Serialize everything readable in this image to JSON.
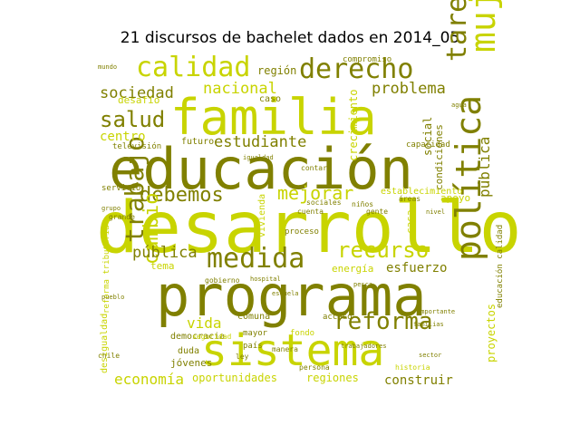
{
  "title": "21 discursos de bachelet dados en 2014_05",
  "colors": {
    "dark": "#808000",
    "mid": "#a6a600",
    "light": "#c8d400",
    "pale": "#d6d680"
  },
  "words": [
    {
      "text": "desarrollo",
      "tone": "light"
    },
    {
      "text": "educación",
      "tone": "dark"
    },
    {
      "text": "programa",
      "tone": "dark"
    },
    {
      "text": "sistema",
      "tone": "light"
    },
    {
      "text": "familia",
      "tone": "light"
    },
    {
      "text": "derecho",
      "tone": "dark"
    },
    {
      "text": "calidad",
      "tone": "light"
    },
    {
      "text": "mujeres",
      "tone": "light"
    },
    {
      "text": "tarea",
      "tone": "dark"
    },
    {
      "text": "política",
      "tone": "dark"
    },
    {
      "text": "trabajo",
      "tone": "dark"
    },
    {
      "text": "medida",
      "tone": "dark"
    },
    {
      "text": "reforma",
      "tone": "dark"
    },
    {
      "text": "recurso",
      "tone": "light"
    },
    {
      "text": "salud",
      "tone": "dark"
    },
    {
      "text": "debemos",
      "tone": "dark"
    },
    {
      "text": "cambio",
      "tone": "light"
    },
    {
      "text": "sociedad",
      "tone": "dark"
    },
    {
      "text": "nacional",
      "tone": "light"
    },
    {
      "text": "problema",
      "tone": "dark"
    },
    {
      "text": "estudiante",
      "tone": "dark"
    },
    {
      "text": "mejorar",
      "tone": "light"
    },
    {
      "text": "pública",
      "tone": "dark"
    },
    {
      "text": "pública",
      "tone": "dark"
    },
    {
      "text": "economía",
      "tone": "light"
    },
    {
      "text": "oportunidades",
      "tone": "light"
    },
    {
      "text": "regiones",
      "tone": "light"
    },
    {
      "text": "construir",
      "tone": "dark"
    },
    {
      "text": "vida",
      "tone": "light"
    },
    {
      "text": "esfuerzo",
      "tone": "dark"
    },
    {
      "text": "centro",
      "tone": "light"
    },
    {
      "text": "región",
      "tone": "dark"
    },
    {
      "text": "proyectos",
      "tone": "light"
    },
    {
      "text": "desafío",
      "tone": "light"
    },
    {
      "text": "tema",
      "tone": "light"
    },
    {
      "text": "energía",
      "tone": "light"
    },
    {
      "text": "social",
      "tone": "dark"
    },
    {
      "text": "crecimiento",
      "tone": "light"
    },
    {
      "text": "futuro",
      "tone": "dark"
    },
    {
      "text": "jóvenes",
      "tone": "dark"
    },
    {
      "text": "democracia",
      "tone": "dark"
    },
    {
      "text": "duda",
      "tone": "dark"
    },
    {
      "text": "comuna",
      "tone": "dark"
    },
    {
      "text": "caso",
      "tone": "dark"
    },
    {
      "text": "condiciones",
      "tone": "dark"
    },
    {
      "text": "establecimiento",
      "tone": "light"
    },
    {
      "text": "apoyo",
      "tone": "light"
    },
    {
      "text": "casa",
      "tone": "light"
    },
    {
      "text": "vivienda",
      "tone": "light"
    },
    {
      "text": "proceso",
      "tone": "dark"
    },
    {
      "text": "desigualdad",
      "tone": "light"
    },
    {
      "text": "reforma tributaria",
      "tone": "light"
    },
    {
      "text": "educación calidad",
      "tone": "dark"
    },
    {
      "text": "fondo",
      "tone": "light"
    },
    {
      "text": "acceso",
      "tone": "dark"
    },
    {
      "text": "televisión",
      "tone": "dark"
    },
    {
      "text": "capacidad",
      "tone": "dark"
    },
    {
      "text": "país",
      "tone": "dark"
    },
    {
      "text": "mayor",
      "tone": "dark"
    },
    {
      "text": "seguridad",
      "tone": "light"
    },
    {
      "text": "servicio",
      "tone": "dark"
    },
    {
      "text": "compromiso",
      "tone": "dark"
    },
    {
      "text": "cuenta",
      "tone": "dark"
    },
    {
      "text": "historia",
      "tone": "light"
    },
    {
      "text": "sociales",
      "tone": "dark"
    },
    {
      "text": "niños",
      "tone": "dark"
    },
    {
      "text": "gente",
      "tone": "dark"
    },
    {
      "text": "áreas",
      "tone": "dark"
    },
    {
      "text": "grande",
      "tone": "dark"
    },
    {
      "text": "chile",
      "tone": "dark"
    },
    {
      "text": "ley",
      "tone": "dark"
    },
    {
      "text": "manera",
      "tone": "dark"
    },
    {
      "text": "persona",
      "tone": "dark"
    },
    {
      "text": "gobierno",
      "tone": "dark"
    },
    {
      "text": "trabajadores",
      "tone": "dark"
    },
    {
      "text": "importante",
      "tone": "dark"
    },
    {
      "text": "igualdad",
      "tone": "dark"
    },
    {
      "text": "contar",
      "tone": "dark"
    },
    {
      "text": "grupo",
      "tone": "dark"
    },
    {
      "text": "pueblo",
      "tone": "dark"
    },
    {
      "text": "mundo",
      "tone": "dark"
    },
    {
      "text": "nivel",
      "tone": "dark"
    },
    {
      "text": "sector",
      "tone": "dark"
    },
    {
      "text": "hospital",
      "tone": "dark"
    },
    {
      "text": "pesca",
      "tone": "dark"
    },
    {
      "text": "agua",
      "tone": "dark"
    },
    {
      "text": "familias",
      "tone": "dark"
    },
    {
      "text": "escuela",
      "tone": "dark"
    }
  ]
}
